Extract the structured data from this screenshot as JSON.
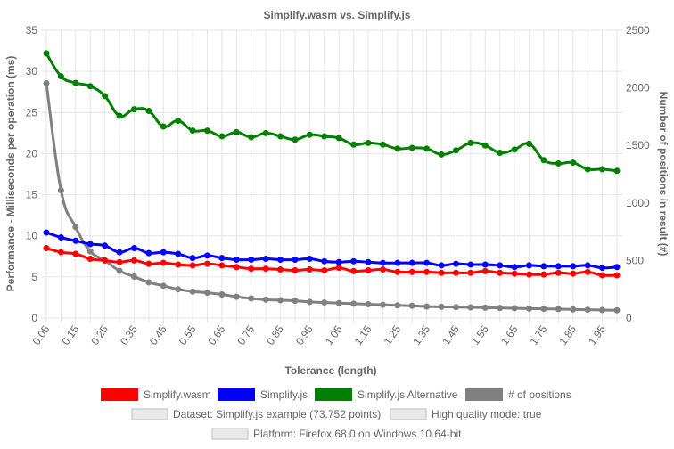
{
  "chart_data": {
    "type": "line",
    "title": "Simplify.wasm vs. Simplify.js",
    "xlabel": "Tolerance (length)",
    "ylabel_left": "Performance - Milliseconds per operation (ms)",
    "ylabel_right": "Number of positions in result (#)",
    "ylim_left": [
      0,
      35
    ],
    "ylim_right": [
      0,
      2500
    ],
    "yticks_left": [
      "0",
      "5",
      "10",
      "15",
      "20",
      "25",
      "30",
      "35"
    ],
    "yticks_right": [
      "0",
      "500",
      "1000",
      "1500",
      "2000",
      "2500"
    ],
    "x_tick_labels": [
      "0.05",
      "0.15",
      "0.25",
      "0.35",
      "0.45",
      "0.55",
      "0.65",
      "0.75",
      "0.85",
      "0.95",
      "1.05",
      "1.15",
      "1.25",
      "1.35",
      "1.45",
      "1.55",
      "1.65",
      "1.75",
      "1.85",
      "1.95"
    ],
    "x": [
      0.05,
      0.1,
      0.15,
      0.2,
      0.25,
      0.3,
      0.35,
      0.4,
      0.45,
      0.5,
      0.55,
      0.6,
      0.65,
      0.7,
      0.75,
      0.8,
      0.85,
      0.9,
      0.95,
      1.0,
      1.05,
      1.1,
      1.15,
      1.2,
      1.25,
      1.3,
      1.35,
      1.4,
      1.45,
      1.5,
      1.55,
      1.6,
      1.65,
      1.7,
      1.75,
      1.8,
      1.85,
      1.9,
      1.95,
      2.0
    ],
    "grid": true,
    "legend_position": "bottom",
    "series": [
      {
        "name": "Simplify.wasm",
        "axis": "left",
        "color": "#ff0000",
        "values": [
          8.5,
          8.0,
          7.8,
          7.2,
          7.0,
          6.8,
          7.0,
          6.6,
          6.7,
          6.5,
          6.4,
          6.6,
          6.4,
          6.2,
          6.0,
          6.0,
          5.9,
          5.8,
          5.9,
          5.8,
          6.1,
          5.7,
          5.8,
          5.9,
          5.6,
          5.6,
          5.6,
          5.5,
          5.5,
          5.5,
          5.7,
          5.5,
          5.4,
          5.3,
          5.3,
          5.5,
          5.4,
          5.6,
          5.2,
          5.2
        ]
      },
      {
        "name": "Simplify.js",
        "axis": "left",
        "color": "#0000ff",
        "values": [
          10.4,
          9.8,
          9.4,
          9.0,
          8.8,
          8.0,
          8.5,
          7.9,
          8.0,
          7.8,
          7.3,
          7.6,
          7.3,
          7.1,
          7.1,
          7.2,
          7.1,
          7.1,
          7.2,
          6.9,
          6.8,
          6.9,
          6.8,
          6.7,
          6.7,
          6.7,
          6.7,
          6.4,
          6.6,
          6.5,
          6.5,
          6.4,
          6.2,
          6.4,
          6.3,
          6.3,
          6.3,
          6.4,
          6.1,
          6.2
        ]
      },
      {
        "name": "Simplify.js Alternative",
        "axis": "left",
        "color": "#008000",
        "values": [
          32.2,
          29.4,
          28.6,
          28.2,
          27.0,
          24.6,
          25.4,
          25.2,
          23.3,
          24.0,
          22.8,
          22.8,
          22.1,
          22.6,
          22.0,
          22.5,
          22.1,
          21.7,
          22.3,
          22.1,
          21.9,
          21.1,
          21.3,
          21.1,
          20.6,
          20.7,
          20.6,
          19.9,
          20.4,
          21.3,
          21.0,
          20.1,
          20.5,
          21.2,
          19.2,
          18.8,
          18.9,
          18.1,
          18.1,
          17.9
        ]
      },
      {
        "name": "# of positions",
        "axis": "right",
        "color": "#808080",
        "values": [
          2040,
          1110,
          790,
          580,
          500,
          410,
          360,
          310,
          280,
          250,
          230,
          220,
          205,
          185,
          170,
          160,
          155,
          150,
          140,
          135,
          130,
          125,
          120,
          115,
          110,
          106,
          100,
          98,
          95,
          93,
          90,
          88,
          85,
          82,
          80,
          78,
          75,
          73,
          70,
          68
        ]
      }
    ],
    "legend_toggles": [
      "Dataset: Simplify.js example (73.752 points)",
      "High quality mode: true",
      "Platform: Firefox 68.0 on Windows 10 64-bit"
    ]
  },
  "colors": {
    "grid": "#e6e6e6",
    "text": "#666666",
    "toggle_fill": "#e8e8e8",
    "toggle_stroke": "#d0d0d0"
  }
}
